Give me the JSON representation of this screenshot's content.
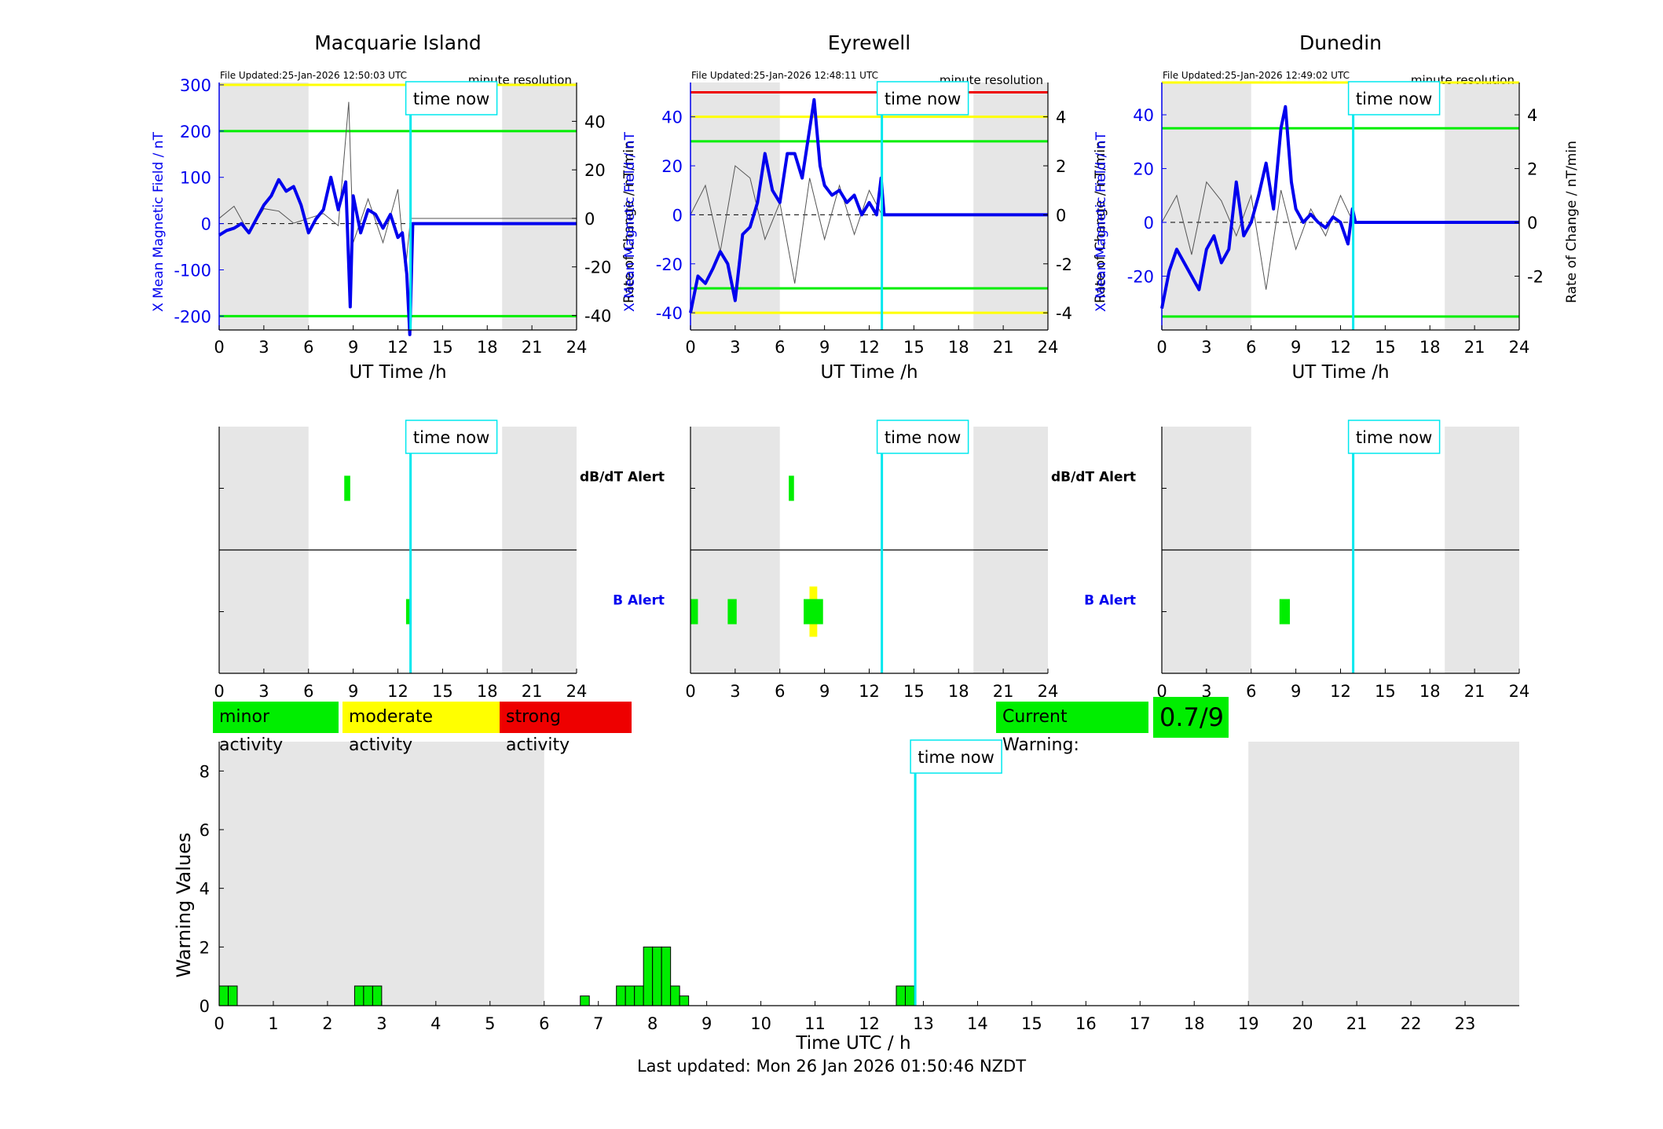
{
  "colors": {
    "data": "#0000ee",
    "rate": "#555555",
    "now": "#00e8ee",
    "minor": "#00ee00",
    "moderate": "#ffff00",
    "strong": "#ee0000",
    "night": "#e6e6e6"
  },
  "stations": [
    {
      "title": "Macquarie Island",
      "file_updated": "File Updated:25-Jan-2026 12:50:03 UTC",
      "resolution": "minute resolution",
      "now_label": "time now",
      "xlabel": "UT Time /h",
      "ylabel_left": "X Mean Magnetic Field / nT",
      "ylabel_right": "Rate of Change / nT/min",
      "x_ticks": [
        "0",
        "3",
        "6",
        "9",
        "12",
        "15",
        "18",
        "21",
        "24"
      ],
      "y_left_ticks": [
        "300",
        "200",
        "100",
        "0",
        "-100",
        "-200"
      ],
      "y_right_ticks": [
        "40",
        "20",
        "0",
        "-20",
        "-40"
      ],
      "dbdt_alert_label": "dB/dT Alert",
      "b_alert_label": "B Alert",
      "show_alert_labels": true
    },
    {
      "title": "Eyrewell",
      "file_updated": "File Updated:25-Jan-2026 12:48:11 UTC",
      "resolution": "minute resolution",
      "now_label": "time now",
      "xlabel": "UT Time /h",
      "ylabel_left": "X Mean Magnetic Field / nT",
      "ylabel_right": "Rate of Change / nT/min",
      "x_ticks": [
        "0",
        "3",
        "6",
        "9",
        "12",
        "15",
        "18",
        "21",
        "24"
      ],
      "y_left_ticks": [
        "40",
        "20",
        "0",
        "-20",
        "-40"
      ],
      "y_right_ticks": [
        "4",
        "2",
        "0",
        "-2",
        "-4"
      ],
      "dbdt_alert_label": "dB/dT Alert",
      "b_alert_label": "B Alert",
      "show_alert_labels": true
    },
    {
      "title": "Dunedin",
      "file_updated": "File Updated:25-Jan-2026 12:49:02 UTC",
      "resolution": "minute resolution",
      "now_label": "time now",
      "xlabel": "UT Time /h",
      "ylabel_left": "X Mean Magnetic Field / nT",
      "ylabel_right": "Rate of Change / nT/min",
      "x_ticks": [
        "0",
        "3",
        "6",
        "9",
        "12",
        "15",
        "18",
        "21",
        "24"
      ],
      "y_left_ticks": [
        "40",
        "20",
        "0",
        "-20"
      ],
      "y_right_ticks": [
        "4",
        "2",
        "0",
        "-2"
      ],
      "show_alert_labels": false
    }
  ],
  "legend": {
    "minor": "minor activity",
    "moderate": "moderate activity",
    "strong": "strong activity"
  },
  "current_warning": {
    "label": "Current Warning:",
    "value": "0.7/9"
  },
  "warning_plot": {
    "ylabel": "Warning Values",
    "xlabel": "Time UTC / h",
    "now_label": "time now",
    "x_ticks": [
      "0",
      "1",
      "2",
      "3",
      "4",
      "5",
      "6",
      "7",
      "8",
      "9",
      "10",
      "11",
      "12",
      "13",
      "14",
      "15",
      "16",
      "17",
      "18",
      "19",
      "20",
      "21",
      "22",
      "23"
    ],
    "y_ticks": [
      "0",
      "2",
      "4",
      "6",
      "8"
    ]
  },
  "footer": "Last updated: Mon 26 Jan 2026 01:50:46 NZDT",
  "chart_data": [
    {
      "type": "line",
      "title": "Macquarie Island",
      "xlabel": "UT Time /h",
      "ylabel": "X Mean Magnetic Field / nT",
      "y2label": "Rate of Change / nT/min",
      "xlim": [
        0,
        24
      ],
      "ylim": [
        -230,
        305
      ],
      "y2lim": [
        -46,
        56
      ],
      "night_shading_hours": [
        [
          0,
          6
        ],
        [
          19,
          24
        ]
      ],
      "time_now": 12.85,
      "thresholds": [
        {
          "color": "yellow",
          "value": 300
        },
        {
          "color": "green",
          "value": 200
        },
        {
          "color": "green",
          "value": -200
        }
      ],
      "series": [
        {
          "name": "X Mean Magnetic Field / nT",
          "axis": "left",
          "x": [
            0,
            0.5,
            1,
            1.5,
            2,
            2.5,
            3,
            3.5,
            4,
            4.5,
            5,
            5.5,
            6,
            6.5,
            7,
            7.5,
            8,
            8.5,
            8.8,
            9,
            9.5,
            10,
            10.5,
            11,
            11.5,
            12,
            12.3,
            12.6,
            12.8,
            13,
            18,
            24
          ],
          "y": [
            -25,
            -15,
            -10,
            0,
            -20,
            10,
            40,
            60,
            95,
            70,
            80,
            40,
            -20,
            10,
            30,
            100,
            30,
            90,
            -180,
            60,
            -20,
            30,
            20,
            -10,
            20,
            -30,
            -20,
            -110,
            -240,
            0,
            0,
            0
          ]
        },
        {
          "name": "Rate of Change / nT/min",
          "axis": "right",
          "x": [
            0,
            1,
            2,
            3,
            4,
            5,
            6,
            7,
            8,
            8.7,
            9,
            10,
            11,
            12,
            12.5,
            12.85,
            24
          ],
          "y": [
            0,
            5,
            -6,
            4,
            3,
            -2,
            0,
            2,
            -3,
            48,
            -10,
            8,
            -10,
            12,
            -22,
            0,
            0
          ]
        }
      ],
      "dbdt_alerts": [
        {
          "start": 8.4,
          "end": 8.8,
          "level": "minor"
        }
      ],
      "b_alerts": [
        {
          "start": 12.55,
          "end": 12.8,
          "level": "minor"
        }
      ]
    },
    {
      "type": "line",
      "title": "Eyrewell",
      "xlabel": "UT Time /h",
      "ylabel": "X Mean Magnetic Field / nT",
      "y2label": "Rate of Change / nT/min",
      "xlim": [
        0,
        24
      ],
      "ylim": [
        -47,
        54
      ],
      "y2lim": [
        -4.7,
        5.4
      ],
      "night_shading_hours": [
        [
          0,
          6
        ],
        [
          19,
          24
        ]
      ],
      "time_now": 12.85,
      "thresholds": [
        {
          "color": "red",
          "value": 50
        },
        {
          "color": "yellow",
          "value": 40
        },
        {
          "color": "green",
          "value": 30
        },
        {
          "color": "green",
          "value": -30
        },
        {
          "color": "yellow",
          "value": -40
        }
      ],
      "series": [
        {
          "name": "X Mean Magnetic Field / nT",
          "axis": "left",
          "x": [
            0,
            0.5,
            1,
            1.5,
            2,
            2.5,
            3,
            3.5,
            4,
            4.5,
            5,
            5.5,
            6,
            6.5,
            7,
            7.5,
            8,
            8.3,
            8.7,
            9,
            9.5,
            10,
            10.5,
            11,
            11.5,
            12,
            12.5,
            12.8,
            13,
            18,
            24
          ],
          "y": [
            -40,
            -25,
            -28,
            -22,
            -15,
            -20,
            -35,
            -8,
            -5,
            5,
            25,
            10,
            5,
            25,
            25,
            15,
            35,
            47,
            20,
            12,
            8,
            10,
            5,
            8,
            0,
            5,
            0,
            15,
            0,
            0,
            0
          ]
        },
        {
          "name": "Rate of Change / nT/min",
          "axis": "right",
          "x": [
            0,
            1,
            2,
            3,
            4,
            5,
            6,
            7,
            8,
            9,
            10,
            11,
            12,
            12.85,
            24
          ],
          "y": [
            0,
            1.2,
            -1.5,
            2,
            1.5,
            -1,
            0.5,
            -2.8,
            1.5,
            -1,
            1.2,
            -0.8,
            1,
            0,
            0
          ]
        }
      ],
      "dbdt_alerts": [
        {
          "start": 6.6,
          "end": 6.95,
          "level": "minor"
        }
      ],
      "b_alerts": [
        {
          "start": 0,
          "end": 0.5,
          "level": "minor"
        },
        {
          "start": 2.5,
          "end": 3.1,
          "level": "minor"
        },
        {
          "start": 7.6,
          "end": 8.9,
          "level": "moderate"
        }
      ]
    },
    {
      "type": "line",
      "title": "Dunedin",
      "xlabel": "UT Time /h",
      "ylabel": "X Mean Magnetic Field / nT",
      "y2label": "Rate of Change / nT/min",
      "xlim": [
        0,
        24
      ],
      "ylim": [
        -40,
        52
      ],
      "y2lim": [
        -4,
        5.2
      ],
      "night_shading_hours": [
        [
          0,
          6
        ],
        [
          19,
          24
        ]
      ],
      "time_now": 12.85,
      "thresholds": [
        {
          "color": "yellow",
          "value": 52
        },
        {
          "color": "green",
          "value": 35
        },
        {
          "color": "green",
          "value": -35
        }
      ],
      "series": [
        {
          "name": "X Mean Magnetic Field / nT",
          "axis": "left",
          "x": [
            0,
            0.5,
            1,
            1.5,
            2,
            2.5,
            3,
            3.5,
            4,
            4.5,
            5,
            5.5,
            6,
            6.5,
            7,
            7.5,
            8,
            8.3,
            8.7,
            9,
            9.5,
            10,
            10.5,
            11,
            11.5,
            12,
            12.5,
            12.8,
            13,
            18,
            24
          ],
          "y": [
            -32,
            -18,
            -10,
            -15,
            -20,
            -25,
            -10,
            -5,
            -15,
            -10,
            15,
            -5,
            0,
            10,
            22,
            5,
            35,
            43,
            15,
            5,
            0,
            3,
            0,
            -2,
            2,
            0,
            -8,
            5,
            0,
            0,
            0
          ]
        },
        {
          "name": "Rate of Change / nT/min",
          "axis": "right",
          "x": [
            0,
            1,
            2,
            3,
            4,
            5,
            6,
            7,
            8,
            9,
            10,
            11,
            12,
            12.85,
            24
          ],
          "y": [
            0,
            1,
            -1.2,
            1.5,
            0.8,
            -0.5,
            1,
            -2.5,
            1.2,
            -1,
            0.5,
            -0.5,
            1,
            0,
            0
          ]
        }
      ],
      "dbdt_alerts": [],
      "b_alerts": [
        {
          "start": 7.9,
          "end": 8.6,
          "level": "minor"
        }
      ]
    },
    {
      "type": "bar",
      "title": "",
      "xlabel": "Time UTC / h",
      "ylabel": "Warning Values",
      "xlim": [
        0,
        24
      ],
      "ylim": [
        0,
        9
      ],
      "night_shading_hours": [
        [
          0,
          6
        ],
        [
          19,
          24
        ]
      ],
      "time_now": 12.85,
      "bar_width_hours": 0.1667,
      "x": [
        0.0,
        0.1667,
        2.5,
        2.6667,
        2.8333,
        6.6667,
        7.3333,
        7.5,
        7.6667,
        7.8333,
        8.0,
        8.1667,
        8.3333,
        8.5,
        12.5,
        12.6667
      ],
      "values": [
        0.67,
        0.67,
        0.67,
        0.67,
        0.67,
        0.33,
        0.67,
        0.67,
        0.67,
        2,
        2,
        2,
        0.67,
        0.33,
        0.67,
        0.67
      ]
    }
  ]
}
